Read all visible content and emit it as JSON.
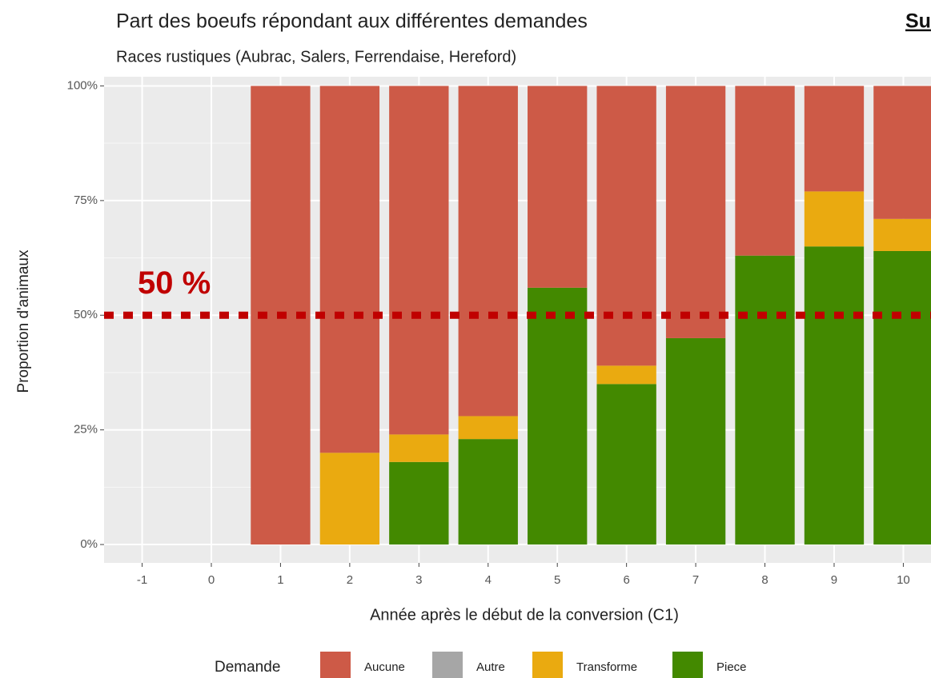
{
  "chart_data": {
    "type": "stacked_bar",
    "title": "Part des boeufs répondant aux différentes demandes",
    "subtitle": "Races rustiques (Aubrac, Salers, Ferrendaise, Hereford)",
    "x_label": "Année après le début de la conversion (C1)",
    "y_label": "Proportion d'animaux",
    "corner_text": "Su",
    "x": [
      -1,
      0,
      1,
      2,
      3,
      4,
      5,
      6,
      7,
      8,
      9,
      10
    ],
    "xlim": [
      -1.55,
      10.4
    ],
    "xticks": [
      -1,
      0,
      1,
      2,
      3,
      4,
      5,
      6,
      7,
      8,
      9,
      10
    ],
    "ylim": [
      -4,
      102
    ],
    "yticks": [
      {
        "value": 0,
        "label": "0%"
      },
      {
        "value": 25,
        "label": "25%"
      },
      {
        "value": 50,
        "label": "50%"
      },
      {
        "value": 75,
        "label": "75%"
      },
      {
        "value": 100,
        "label": "100%"
      }
    ],
    "grid": true,
    "legend_title": "Demande",
    "legend_position": "bottom",
    "series": [
      {
        "name": "Aucune",
        "color": "#cd5a47",
        "values": [
          0,
          0,
          100,
          80,
          76,
          72,
          44,
          61,
          55,
          37,
          23,
          29
        ]
      },
      {
        "name": "Autre",
        "color": "#a6a6a6",
        "values": [
          0,
          0,
          0,
          0,
          0,
          0,
          0,
          0,
          0,
          0,
          0,
          0
        ]
      },
      {
        "name": "Transforme",
        "color": "#eaaa10",
        "values": [
          0,
          0,
          0,
          20,
          6,
          5,
          0,
          4,
          0,
          0,
          12,
          7
        ]
      },
      {
        "name": "Piece",
        "color": "#438900",
        "values": [
          0,
          0,
          0,
          0,
          18,
          23,
          56,
          35,
          45,
          63,
          65,
          64
        ]
      }
    ],
    "hline": {
      "value": 50,
      "label": "50 %",
      "color": "#c00000"
    }
  }
}
